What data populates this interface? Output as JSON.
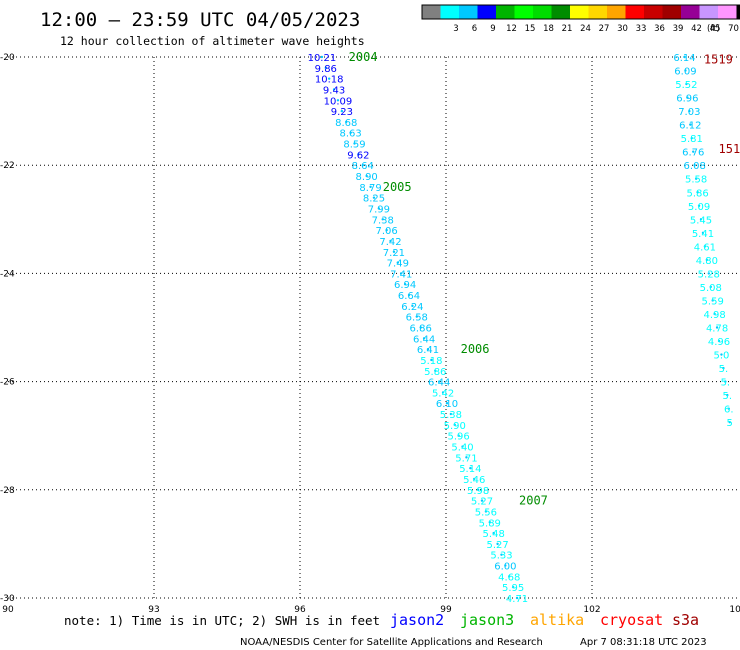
{
  "header": {
    "title": "12:00 – 23:59 UTC 04/05/2023",
    "subtitle": "12 hour collection of altimeter wave heights"
  },
  "legend": {
    "unit": "(ft)",
    "swatches": [
      {
        "color": "#808080",
        "label": ""
      },
      {
        "color": "#00ffff",
        "label": "3"
      },
      {
        "color": "#00c8ff",
        "label": "6"
      },
      {
        "color": "#0000ff",
        "label": "9"
      },
      {
        "color": "#00b400",
        "label": "12"
      },
      {
        "color": "#00ff00",
        "label": "15"
      },
      {
        "color": "#00dc00",
        "label": "18"
      },
      {
        "color": "#008c00",
        "label": "21"
      },
      {
        "color": "#ffff00",
        "label": "24"
      },
      {
        "color": "#ffd700",
        "label": "27"
      },
      {
        "color": "#ffa500",
        "label": "30"
      },
      {
        "color": "#ff0000",
        "label": "33"
      },
      {
        "color": "#c80000",
        "label": "36"
      },
      {
        "color": "#a00000",
        "label": "39"
      },
      {
        "color": "#960096",
        "label": "42"
      },
      {
        "color": "#c896ff",
        "label": "45"
      },
      {
        "color": "#ff96ff",
        "label": "70"
      },
      {
        "color": "#000000",
        "label": ""
      }
    ]
  },
  "chart_data": {
    "type": "scatter",
    "title": "12:00 – 23:59 UTC 04/05/2023",
    "subtitle": "12 hour collection of altimeter wave heights",
    "xlim": [
      90,
      105
    ],
    "ylim": [
      -30,
      -20
    ],
    "x_ticks": [
      "90",
      "93",
      "96",
      "99",
      "102",
      "105"
    ],
    "y_ticks": [
      "-20",
      "-22",
      "-24",
      "-26",
      "-28",
      "-30"
    ],
    "grid": true,
    "series": [
      {
        "name": "jason3",
        "track_color": "#00c8ff",
        "points": [
          {
            "lon": 96.45,
            "lat": -20.0,
            "swh": "10.21",
            "color": "#0000ff"
          },
          {
            "lon": 96.53,
            "lat": -20.2,
            "swh": "9.86",
            "color": "#0000ff"
          },
          {
            "lon": 96.6,
            "lat": -20.4,
            "swh": "10.18",
            "color": "#0000ff"
          },
          {
            "lon": 96.7,
            "lat": -20.6,
            "swh": "9.43",
            "color": "#0000ff"
          },
          {
            "lon": 96.78,
            "lat": -20.8,
            "swh": "10.09",
            "color": "#0000ff"
          },
          {
            "lon": 96.86,
            "lat": -21.0,
            "swh": "9.23",
            "color": "#0000ff"
          },
          {
            "lon": 96.95,
            "lat": -21.2,
            "swh": "8.68",
            "color": "#00c8ff"
          },
          {
            "lon": 97.04,
            "lat": -21.4,
            "swh": "8.63",
            "color": "#00c8ff"
          },
          {
            "lon": 97.12,
            "lat": -21.6,
            "swh": "8.59",
            "color": "#00c8ff"
          },
          {
            "lon": 97.2,
            "lat": -21.8,
            "swh": "9.62",
            "color": "#0000ff"
          },
          {
            "lon": 97.29,
            "lat": -22.0,
            "swh": "8.64",
            "color": "#00c8ff"
          },
          {
            "lon": 97.37,
            "lat": -22.2,
            "swh": "8.90",
            "color": "#00c8ff"
          },
          {
            "lon": 97.45,
            "lat": -22.4,
            "swh": "8.79",
            "color": "#00c8ff"
          },
          {
            "lon": 97.52,
            "lat": -22.6,
            "swh": "8.25",
            "color": "#00c8ff"
          },
          {
            "lon": 97.62,
            "lat": -22.8,
            "swh": "7.99",
            "color": "#00c8ff"
          },
          {
            "lon": 97.7,
            "lat": -23.0,
            "swh": "7.38",
            "color": "#00c8ff"
          },
          {
            "lon": 97.78,
            "lat": -23.2,
            "swh": "7.06",
            "color": "#00c8ff"
          },
          {
            "lon": 97.86,
            "lat": -23.4,
            "swh": "7.42",
            "color": "#00c8ff"
          },
          {
            "lon": 97.93,
            "lat": -23.6,
            "swh": "7.21",
            "color": "#00c8ff"
          },
          {
            "lon": 98.01,
            "lat": -23.8,
            "swh": "7.49",
            "color": "#00c8ff"
          },
          {
            "lon": 98.08,
            "lat": -24.0,
            "swh": "7.41",
            "color": "#00c8ff"
          },
          {
            "lon": 98.16,
            "lat": -24.2,
            "swh": "6.94",
            "color": "#00c8ff"
          },
          {
            "lon": 98.24,
            "lat": -24.4,
            "swh": "6.64",
            "color": "#00c8ff"
          },
          {
            "lon": 98.31,
            "lat": -24.6,
            "swh": "6.24",
            "color": "#00c8ff"
          },
          {
            "lon": 98.4,
            "lat": -24.8,
            "swh": "6.58",
            "color": "#00c8ff"
          },
          {
            "lon": 98.48,
            "lat": -25.0,
            "swh": "6.86",
            "color": "#00c8ff"
          },
          {
            "lon": 98.55,
            "lat": -25.2,
            "swh": "6.44",
            "color": "#00c8ff"
          },
          {
            "lon": 98.63,
            "lat": -25.4,
            "swh": "6.41",
            "color": "#00c8ff"
          },
          {
            "lon": 98.7,
            "lat": -25.6,
            "swh": "5.18",
            "color": "#00ffff"
          },
          {
            "lon": 98.78,
            "lat": -25.8,
            "swh": "5.86",
            "color": "#00ffff"
          },
          {
            "lon": 98.86,
            "lat": -26.0,
            "swh": "6.44",
            "color": "#00c8ff"
          },
          {
            "lon": 98.94,
            "lat": -26.2,
            "swh": "5.42",
            "color": "#00ffff"
          },
          {
            "lon": 99.02,
            "lat": -26.4,
            "swh": "6.10",
            "color": "#00c8ff"
          },
          {
            "lon": 99.1,
            "lat": -26.6,
            "swh": "5.38",
            "color": "#00ffff"
          },
          {
            "lon": 99.18,
            "lat": -26.8,
            "swh": "5.90",
            "color": "#00ffff"
          },
          {
            "lon": 99.26,
            "lat": -27.0,
            "swh": "5.96",
            "color": "#00ffff"
          },
          {
            "lon": 99.34,
            "lat": -27.2,
            "swh": "5.40",
            "color": "#00ffff"
          },
          {
            "lon": 99.42,
            "lat": -27.4,
            "swh": "5.71",
            "color": "#00ffff"
          },
          {
            "lon": 99.5,
            "lat": -27.6,
            "swh": "5.14",
            "color": "#00ffff"
          },
          {
            "lon": 99.58,
            "lat": -27.8,
            "swh": "5.46",
            "color": "#00ffff"
          },
          {
            "lon": 99.66,
            "lat": -28.0,
            "swh": "5.98",
            "color": "#00ffff"
          },
          {
            "lon": 99.74,
            "lat": -28.2,
            "swh": "5.27",
            "color": "#00ffff"
          },
          {
            "lon": 99.82,
            "lat": -28.4,
            "swh": "5.56",
            "color": "#00ffff"
          },
          {
            "lon": 99.9,
            "lat": -28.6,
            "swh": "5.89",
            "color": "#00ffff"
          },
          {
            "lon": 99.98,
            "lat": -28.8,
            "swh": "5.48",
            "color": "#00ffff"
          },
          {
            "lon": 100.06,
            "lat": -29.0,
            "swh": "5.27",
            "color": "#00ffff"
          },
          {
            "lon": 100.14,
            "lat": -29.2,
            "swh": "5.33",
            "color": "#00ffff"
          },
          {
            "lon": 100.22,
            "lat": -29.4,
            "swh": "6.00",
            "color": "#00c8ff"
          },
          {
            "lon": 100.3,
            "lat": -29.6,
            "swh": "4.68",
            "color": "#00ffff"
          },
          {
            "lon": 100.38,
            "lat": -29.8,
            "swh": "5.95",
            "color": "#00ffff"
          },
          {
            "lon": 100.46,
            "lat": -30.0,
            "swh": "4.71",
            "color": "#00ffff"
          },
          {
            "lon": 100.54,
            "lat": -30.2,
            "swh": "4.93",
            "color": "#00ffff"
          }
        ]
      },
      {
        "name": "cryosat",
        "track_color": "#00c8ff",
        "points": [
          {
            "lon": 103.9,
            "lat": -20.0,
            "swh": "6.14",
            "color": "#00c8ff"
          },
          {
            "lon": 103.92,
            "lat": -20.25,
            "swh": "6.09",
            "color": "#00c8ff"
          },
          {
            "lon": 103.94,
            "lat": -20.5,
            "swh": "5.52",
            "color": "#00ffff"
          },
          {
            "lon": 103.96,
            "lat": -20.75,
            "swh": "6.96",
            "color": "#00c8ff"
          },
          {
            "lon": 104.0,
            "lat": -21.0,
            "swh": "7.03",
            "color": "#00c8ff"
          },
          {
            "lon": 104.02,
            "lat": -21.25,
            "swh": "6.12",
            "color": "#00c8ff"
          },
          {
            "lon": 104.05,
            "lat": -21.5,
            "swh": "5.81",
            "color": "#00ffff"
          },
          {
            "lon": 104.08,
            "lat": -21.75,
            "swh": "6.76",
            "color": "#00c8ff"
          },
          {
            "lon": 104.11,
            "lat": -22.0,
            "swh": "6.08",
            "color": "#00c8ff"
          },
          {
            "lon": 104.14,
            "lat": -22.25,
            "swh": "5.58",
            "color": "#00ffff"
          },
          {
            "lon": 104.17,
            "lat": -22.5,
            "swh": "5.86",
            "color": "#00ffff"
          },
          {
            "lon": 104.2,
            "lat": -22.75,
            "swh": "5.09",
            "color": "#00ffff"
          },
          {
            "lon": 104.24,
            "lat": -23.0,
            "swh": "5.45",
            "color": "#00ffff"
          },
          {
            "lon": 104.28,
            "lat": -23.25,
            "swh": "5.41",
            "color": "#00ffff"
          },
          {
            "lon": 104.32,
            "lat": -23.5,
            "swh": "4.61",
            "color": "#00ffff"
          },
          {
            "lon": 104.36,
            "lat": -23.75,
            "swh": "4.80",
            "color": "#00ffff"
          },
          {
            "lon": 104.4,
            "lat": -24.0,
            "swh": "5.28",
            "color": "#00ffff"
          },
          {
            "lon": 104.44,
            "lat": -24.25,
            "swh": "5.08",
            "color": "#00ffff"
          },
          {
            "lon": 104.48,
            "lat": -24.5,
            "swh": "5.59",
            "color": "#00ffff"
          },
          {
            "lon": 104.52,
            "lat": -24.75,
            "swh": "4.98",
            "color": "#00ffff"
          },
          {
            "lon": 104.57,
            "lat": -25.0,
            "swh": "4.78",
            "color": "#00ffff"
          },
          {
            "lon": 104.61,
            "lat": -25.25,
            "swh": "4.96",
            "color": "#00ffff"
          },
          {
            "lon": 104.66,
            "lat": -25.5,
            "swh": "5.0",
            "color": "#00ffff"
          },
          {
            "lon": 104.7,
            "lat": -25.75,
            "swh": "5.",
            "color": "#00ffff"
          },
          {
            "lon": 104.74,
            "lat": -26.0,
            "swh": "5.",
            "color": "#00ffff"
          },
          {
            "lon": 104.78,
            "lat": -26.25,
            "swh": "5.",
            "color": "#00ffff"
          },
          {
            "lon": 104.81,
            "lat": -26.5,
            "swh": "6.",
            "color": "#00ffff"
          },
          {
            "lon": 104.83,
            "lat": -26.75,
            "swh": "5",
            "color": "#00ffff"
          }
        ]
      }
    ],
    "pass_labels": [
      {
        "text": "2004",
        "lon": 97.0,
        "lat": -20.0,
        "color": "#008c00"
      },
      {
        "text": "2005",
        "lon": 97.7,
        "lat": -22.4,
        "color": "#008c00"
      },
      {
        "text": "2006",
        "lon": 99.3,
        "lat": -25.4,
        "color": "#008c00"
      },
      {
        "text": "2007",
        "lon": 100.5,
        "lat": -28.2,
        "color": "#008c00"
      },
      {
        "text": "1519",
        "lon": 104.3,
        "lat": -20.05,
        "color": "#a00000"
      },
      {
        "text": "1518",
        "lon": 104.6,
        "lat": -21.7,
        "color": "#a00000"
      }
    ]
  },
  "footer": {
    "note": "note: 1) Time is in UTC; 2) SWH is in feet",
    "satellites": [
      {
        "name": "jason2",
        "color": "#0000ff"
      },
      {
        "name": "jason3",
        "color": "#00b400"
      },
      {
        "name": "altika",
        "color": "#ffa500"
      },
      {
        "name": "cryosat",
        "color": "#ff0000"
      },
      {
        "name": "s3a",
        "color": "#a00000"
      }
    ],
    "credit": "NOAA/NESDIS Center for Satellite Applications and Research",
    "timestamp": "Apr  7 08:31:18 UTC 2023"
  }
}
